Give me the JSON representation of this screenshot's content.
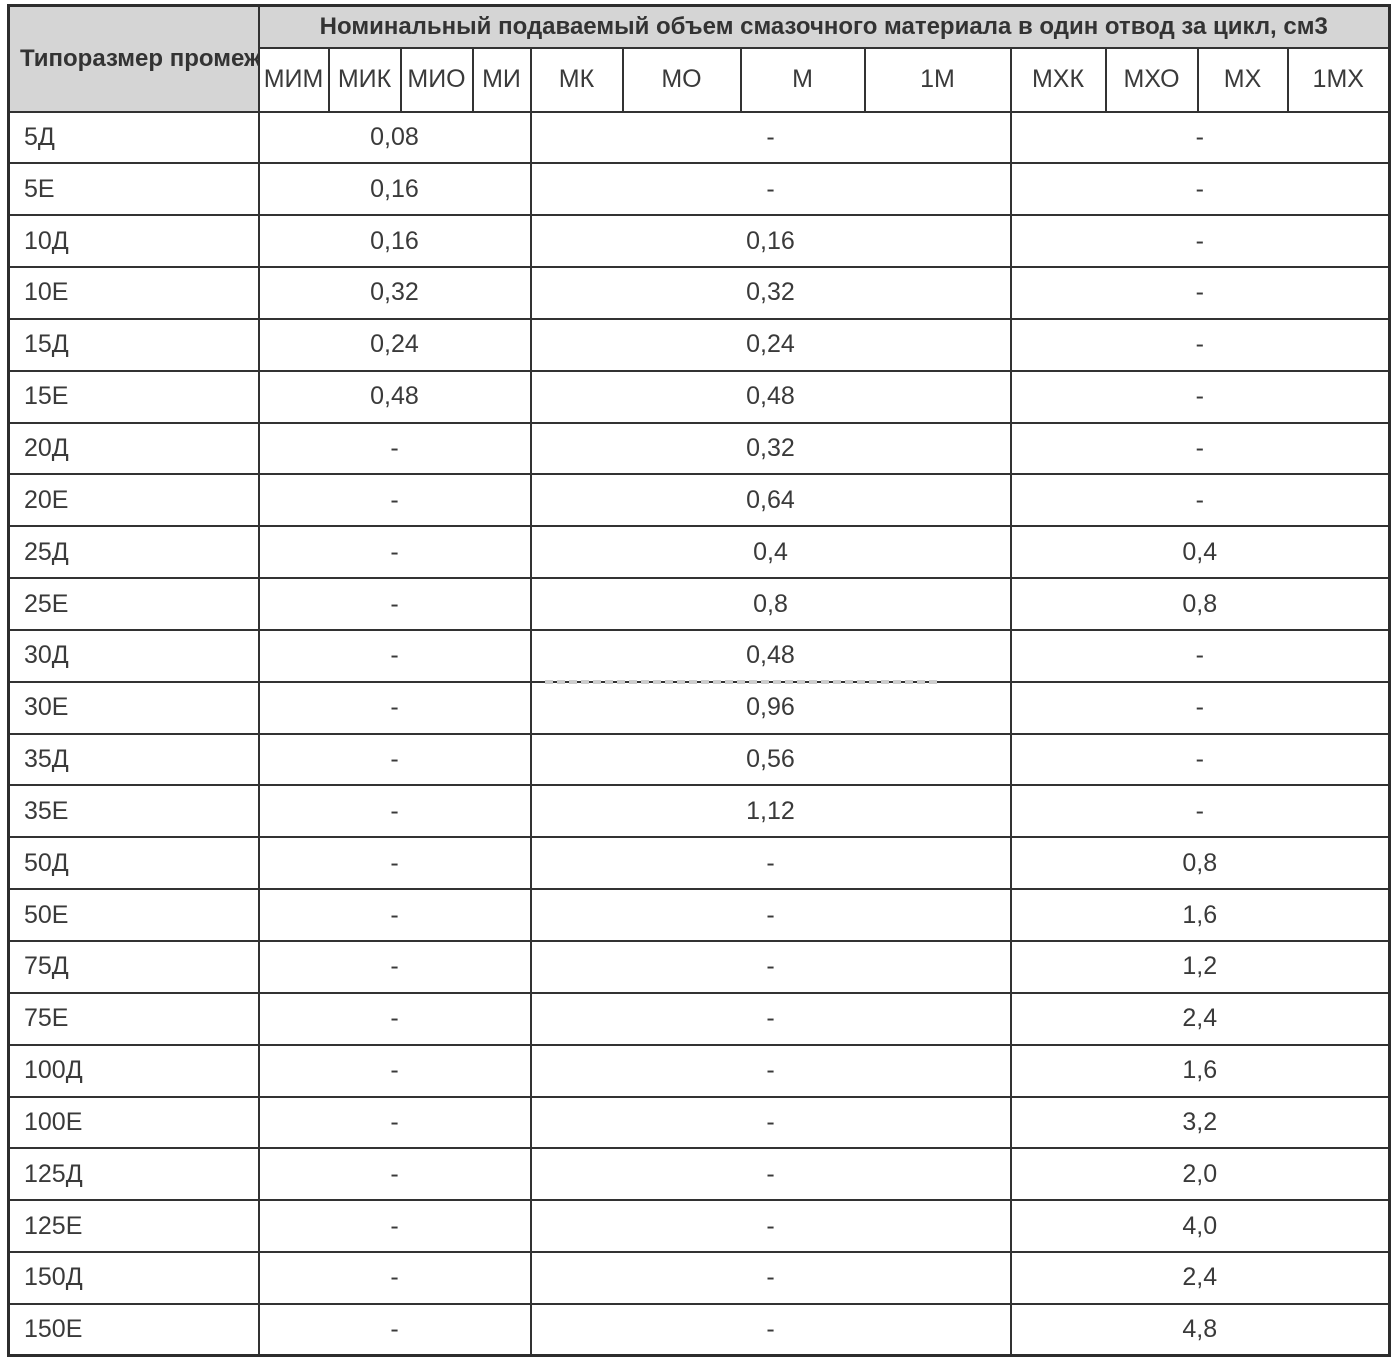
{
  "table": {
    "corner_header": "Типоразмер промежуточной секции",
    "main_header": "Номинальный подаваемый объем смазочного материала в один отвод за цикл, см3",
    "column_headers": [
      "МИМ",
      "МИК",
      "МИО",
      "МИ",
      "МК",
      "МО",
      "М",
      "1М",
      "МХК",
      "МХО",
      "МХ",
      "1МХ"
    ],
    "column_groups": [
      {
        "columns": [
          "МИМ",
          "МИК",
          "МИО",
          "МИ"
        ]
      },
      {
        "columns": [
          "МК",
          "МО",
          "М",
          "1М"
        ]
      },
      {
        "columns": [
          "МХК",
          "МХО",
          "МХ",
          "1МХ"
        ]
      }
    ],
    "rows": [
      {
        "label": "5Д",
        "values": [
          "0,08",
          "-",
          "-"
        ]
      },
      {
        "label": "5Е",
        "values": [
          "0,16",
          "-",
          "-"
        ]
      },
      {
        "label": "10Д",
        "values": [
          "0,16",
          "0,16",
          "-"
        ]
      },
      {
        "label": "10Е",
        "values": [
          "0,32",
          "0,32",
          "-"
        ]
      },
      {
        "label": "15Д",
        "values": [
          "0,24",
          "0,24",
          "-"
        ]
      },
      {
        "label": "15Е",
        "values": [
          "0,48",
          "0,48",
          "-"
        ]
      },
      {
        "label": "20Д",
        "values": [
          "-",
          "0,32",
          "-"
        ]
      },
      {
        "label": "20Е",
        "values": [
          "-",
          "0,64",
          "-"
        ]
      },
      {
        "label": "25Д",
        "values": [
          "-",
          "0,4",
          "0,4"
        ]
      },
      {
        "label": "25Е",
        "values": [
          "-",
          "0,8",
          "0,8"
        ]
      },
      {
        "label": "30Д",
        "values": [
          "-",
          "0,48",
          "-"
        ]
      },
      {
        "label": "30Е",
        "values": [
          "-",
          "0,96",
          "-"
        ]
      },
      {
        "label": "35Д",
        "values": [
          "-",
          "0,56",
          "-"
        ]
      },
      {
        "label": "35Е",
        "values": [
          "-",
          "1,12",
          "-"
        ]
      },
      {
        "label": "50Д",
        "values": [
          "-",
          "-",
          "0,8"
        ]
      },
      {
        "label": "50Е",
        "values": [
          "-",
          "-",
          "1,6"
        ]
      },
      {
        "label": "75Д",
        "values": [
          "-",
          "-",
          "1,2"
        ]
      },
      {
        "label": "75Е",
        "values": [
          "-",
          "-",
          "2,4"
        ]
      },
      {
        "label": "100Д",
        "values": [
          "-",
          "-",
          "1,6"
        ]
      },
      {
        "label": "100Е",
        "values": [
          "-",
          "-",
          "3,2"
        ]
      },
      {
        "label": "125Д",
        "values": [
          "-",
          "-",
          "2,0"
        ]
      },
      {
        "label": "125Е",
        "values": [
          "-",
          "-",
          "4,0"
        ]
      },
      {
        "label": "150Д",
        "values": [
          "-",
          "-",
          "2,4"
        ]
      },
      {
        "label": "150Е",
        "values": [
          "-",
          "-",
          "4,8"
        ]
      }
    ],
    "colors": {
      "header_bg": "#d5d5d5",
      "border": "#323232",
      "text": "#3a3a3a"
    }
  }
}
